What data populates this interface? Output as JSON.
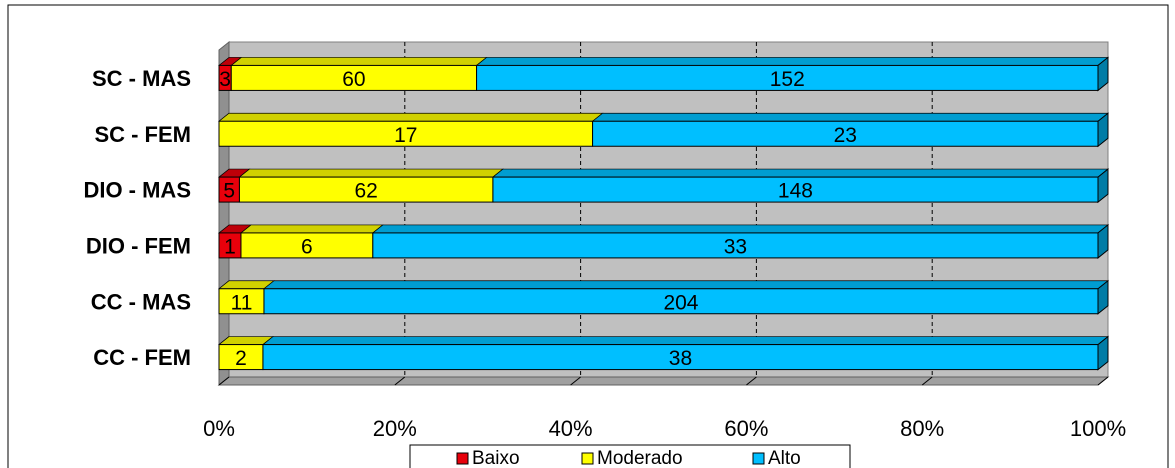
{
  "chart_data": {
    "type": "bar",
    "orientation": "horizontal",
    "stacked": "percent",
    "title": "",
    "xlabel": "",
    "ylabel": "",
    "categories": [
      "SC - MAS",
      "SC - FEM",
      "DIO - MAS",
      "DIO - FEM",
      "CC - MAS",
      "CC - FEM"
    ],
    "series": [
      {
        "name": "Baixo",
        "color": "#e8000b",
        "values": [
          3,
          0,
          5,
          1,
          0,
          0
        ]
      },
      {
        "name": "Moderado",
        "color": "#ffff00",
        "values": [
          60,
          17,
          62,
          6,
          11,
          2
        ]
      },
      {
        "name": "Alto",
        "color": "#00bfff",
        "values": [
          152,
          23,
          148,
          33,
          204,
          38
        ]
      }
    ],
    "xlim": [
      0,
      100
    ],
    "x_ticks": [
      "0%",
      "20%",
      "40%",
      "60%",
      "80%",
      "100%"
    ],
    "grid": true,
    "legend_position": "bottom"
  }
}
